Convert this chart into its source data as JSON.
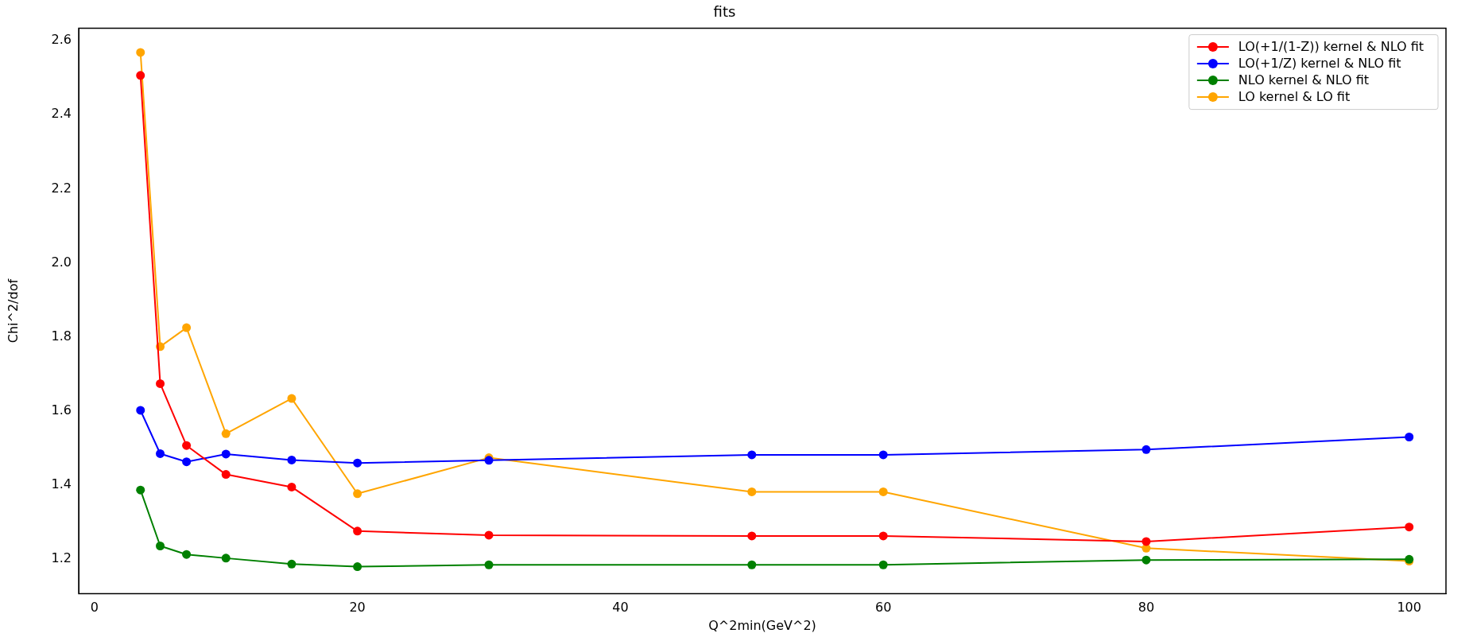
{
  "chart_data": {
    "type": "line",
    "title": "fits",
    "xlabel": "Q^2min(GeV^2)",
    "ylabel": "Chi^2/dof",
    "x": [
      3.5,
      5,
      7,
      10,
      15,
      20,
      30,
      50,
      60,
      80,
      100
    ],
    "series": [
      {
        "name": "LO(+1/(1-Z)) kernel & NLO fit",
        "color": "#ff0000",
        "values": [
          2.506,
          1.674,
          1.507,
          1.429,
          1.395,
          1.276,
          1.265,
          1.263,
          1.263,
          1.248,
          1.287
        ]
      },
      {
        "name": "LO(+1/Z) kernel & NLO fit",
        "color": "#0000ff",
        "values": [
          1.602,
          1.485,
          1.463,
          1.484,
          1.468,
          1.46,
          1.467,
          1.482,
          1.482,
          1.496,
          1.53
        ]
      },
      {
        "name": "NLO kernel & NLO fit",
        "color": "#008000",
        "values": [
          1.387,
          1.236,
          1.213,
          1.203,
          1.187,
          1.18,
          1.185,
          1.185,
          1.185,
          1.198,
          1.2
        ]
      },
      {
        "name": "LO kernel & LO fit",
        "color": "#ffa500",
        "values": [
          2.568,
          1.774,
          1.825,
          1.539,
          1.634,
          1.377,
          1.474,
          1.382,
          1.382,
          1.23,
          1.195
        ]
      }
    ],
    "xlim": [
      -1.2,
      102.8
    ],
    "xticks": [
      0,
      20,
      40,
      60,
      80,
      100
    ],
    "ylim": [
      1.107,
      2.633
    ],
    "yticks": [
      1.2,
      1.4,
      1.6,
      1.8,
      {
        "value": 2,
        "label": "2.0"
      },
      2.2,
      2.4,
      2.6
    ],
    "marker": "circle",
    "line_style": "solid",
    "legend": "top right",
    "grid": false
  }
}
